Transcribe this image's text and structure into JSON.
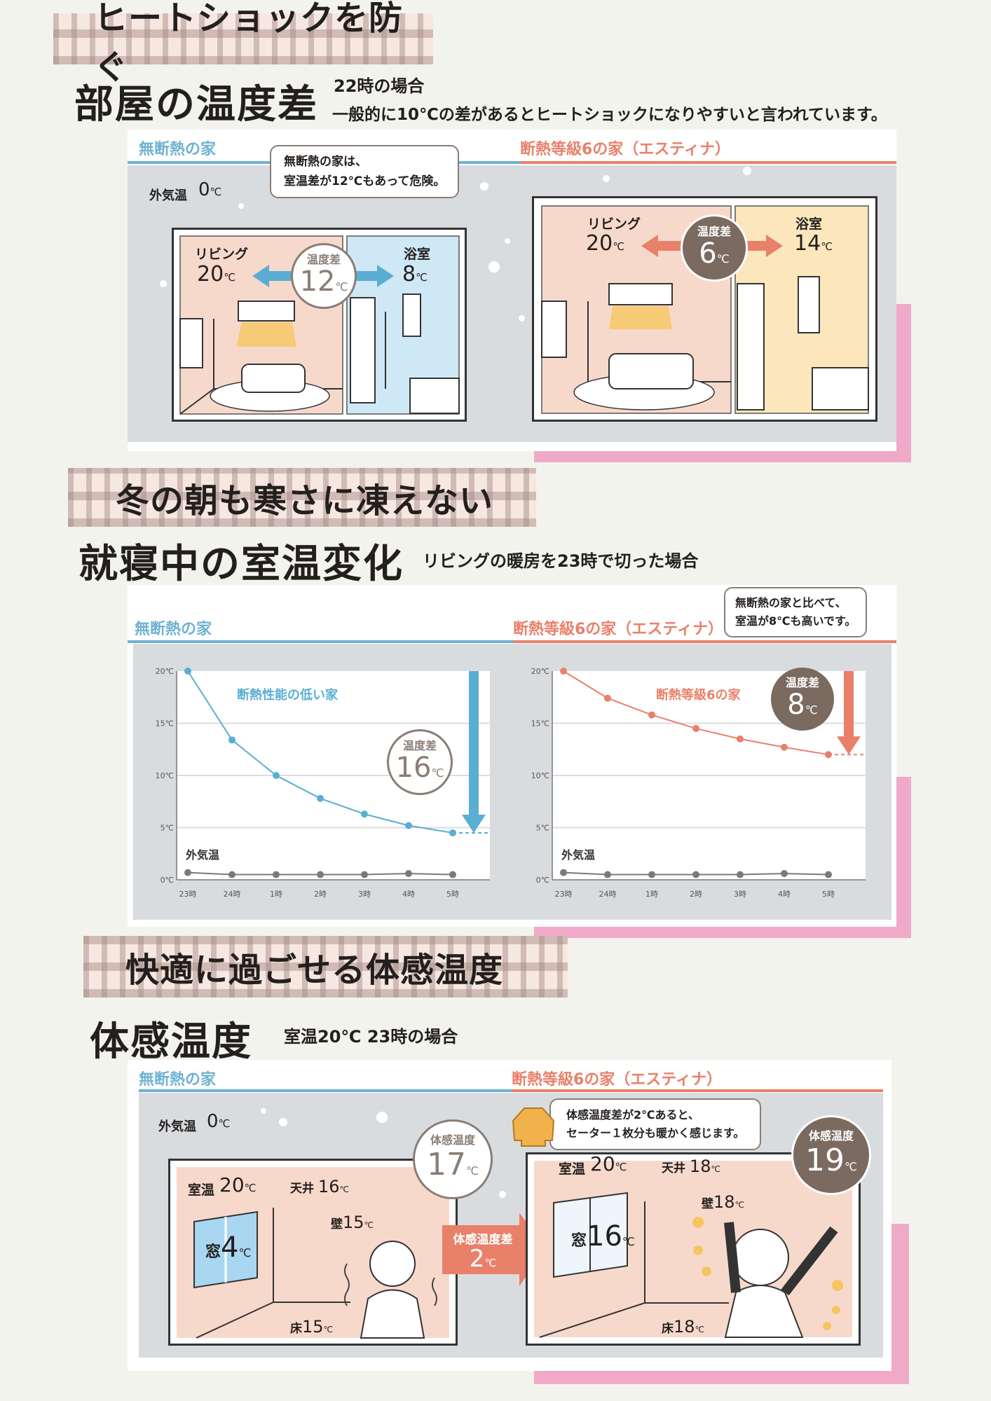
{
  "colors": {
    "background": "#f3f3ee",
    "panel_gray": "#d9dcdf",
    "blue": "#5aaed3",
    "orange": "#e9806a",
    "brown": "#7a6a60",
    "pink": "#f0aac8"
  },
  "unit": "℃",
  "sec1": {
    "tape_title": "ヒートショックを防ぐ",
    "heading": "部屋の温度差",
    "sub1": "22時の場合",
    "sub2": "一般的に10℃の差があるとヒートショックになりやすいと言われています。",
    "left_label": "無断熱の家",
    "right_label": "断熱等級6の家（エスティナ）",
    "outside_label": "外気温",
    "outside_temp": "0",
    "bubble1": "無断熱の家は、",
    "bubble2": "室温差が12℃もあって危険。",
    "living": "リビング",
    "bath": "浴室",
    "diff_label": "温度差",
    "left": {
      "living_temp": "20",
      "bath_temp": "8",
      "diff": "12"
    },
    "right": {
      "living_temp": "20",
      "bath_temp": "14",
      "diff": "6"
    }
  },
  "sec2": {
    "tape_title": "冬の朝も寒さに凍えない",
    "heading": "就寝中の室温変化",
    "sub": "リビングの暖房を23時で切った場合",
    "left_label": "無断熱の家",
    "right_label": "断熱等級6の家（エスティナ）",
    "bubble1": "無断熱の家と比べて、",
    "bubble2": "室温が8℃も高いです。",
    "diff_label": "温度差",
    "left_diff": "16",
    "right_diff": "8"
  },
  "chart_data": [
    {
      "type": "line",
      "title": "",
      "categories": [
        "23時",
        "24時",
        "1時",
        "2時",
        "3時",
        "4時",
        "5時"
      ],
      "yticks": [
        "0℃",
        "5℃",
        "10℃",
        "15℃",
        "20℃"
      ],
      "ylim": [
        0,
        20
      ],
      "grid": true,
      "series": [
        {
          "name": "断熱性能の低い家",
          "color": "#5aaed3",
          "values": [
            20,
            13.4,
            10,
            7.8,
            6.3,
            5.2,
            4.5
          ]
        },
        {
          "name": "外気温",
          "color": "#7a7a7a",
          "values": [
            0.7,
            0.5,
            0.5,
            0.5,
            0.5,
            0.6,
            0.5
          ]
        }
      ],
      "annotation": {
        "label": "温度差",
        "value": "16"
      }
    },
    {
      "type": "line",
      "title": "",
      "categories": [
        "23時",
        "24時",
        "1時",
        "2時",
        "3時",
        "4時",
        "5時"
      ],
      "yticks": [
        "0℃",
        "5℃",
        "10℃",
        "15℃",
        "20℃"
      ],
      "ylim": [
        0,
        20
      ],
      "grid": true,
      "series": [
        {
          "name": "断熱等級6の家",
          "color": "#e9806a",
          "values": [
            20,
            17.4,
            15.8,
            14.5,
            13.5,
            12.7,
            12.0
          ]
        },
        {
          "name": "外気温",
          "color": "#7a7a7a",
          "values": [
            0.7,
            0.5,
            0.5,
            0.5,
            0.5,
            0.6,
            0.5
          ]
        }
      ],
      "annotation": {
        "label": "温度差",
        "value": "8"
      }
    }
  ],
  "sec3": {
    "tape_title": "快適に過ごせる体感温度",
    "heading": "体感温度",
    "sub": "室温20℃ 23時の場合",
    "left_label": "無断熱の家",
    "right_label": "断熱等級6の家（エスティナ）",
    "outside_label": "外気温",
    "outside_temp": "0",
    "feel_label": "体感温度",
    "room_label": "室温",
    "ceiling_label": "天井",
    "wall_label": "壁",
    "window_label": "窓",
    "floor_label": "床",
    "left": {
      "room": "20",
      "ceiling": "16",
      "wall": "15",
      "window": "4",
      "floor": "15",
      "feel": "17"
    },
    "right": {
      "room": "20",
      "ceiling": "18",
      "wall": "18",
      "window": "16",
      "floor": "18",
      "feel": "19"
    },
    "arrow_label": "体感温度差",
    "arrow_value": "2",
    "bubble1": "体感温度差が2℃あると、",
    "bubble2": "セーター１枚分も暖かく感じます。"
  }
}
